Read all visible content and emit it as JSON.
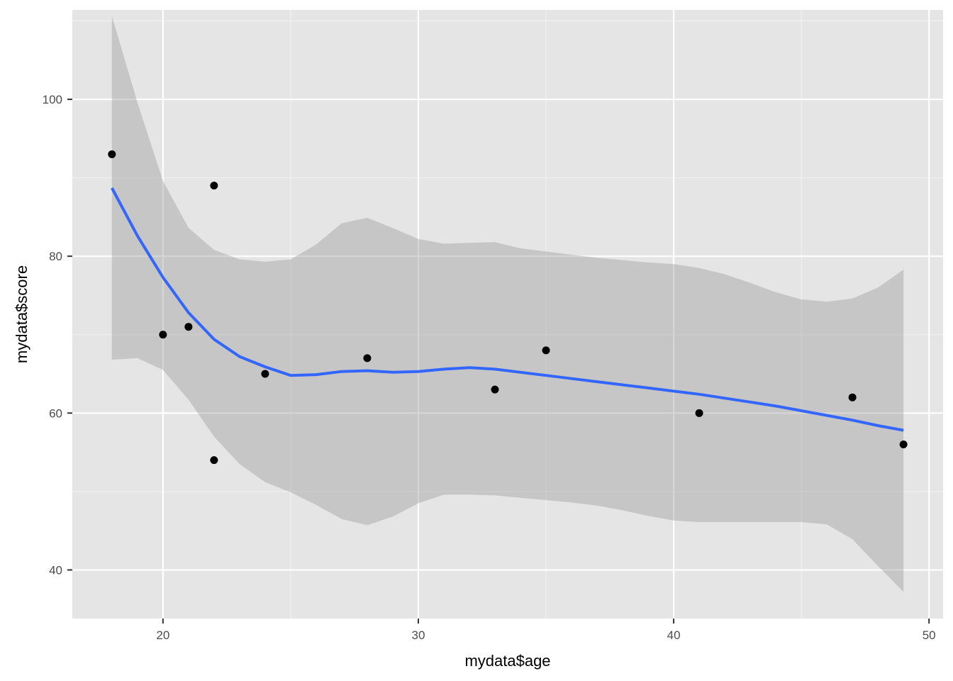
{
  "chart_data": {
    "type": "scatter",
    "title": "",
    "xlabel": "mydata$age",
    "ylabel": "mydata$score",
    "xlim": [
      16.45,
      50.55
    ],
    "ylim": [
      33.8,
      111.4
    ],
    "x_ticks": [
      20,
      30,
      40,
      50
    ],
    "x_tick_labels": [
      "20",
      "30",
      "40",
      "50"
    ],
    "y_ticks": [
      40,
      60,
      80,
      100
    ],
    "y_tick_labels": [
      "40",
      "60",
      "80",
      "100"
    ],
    "grid": true,
    "legend": "none",
    "points": {
      "x": [
        18,
        20,
        21,
        22,
        22,
        24,
        28,
        33,
        35,
        41,
        47,
        49
      ],
      "y": [
        93,
        70,
        71,
        89,
        54,
        65,
        67,
        63,
        68,
        60,
        62,
        56
      ]
    },
    "smooth": {
      "method": "loess",
      "x": [
        18,
        19,
        20,
        21,
        22,
        23,
        24,
        25,
        26,
        27,
        28,
        29,
        30,
        31,
        32,
        33,
        34,
        35,
        36,
        37,
        38,
        39,
        40,
        41,
        42,
        43,
        44,
        45,
        46,
        47,
        48,
        49
      ],
      "y": [
        88.7,
        82.6,
        77.3,
        72.8,
        69.4,
        67.2,
        65.9,
        64.8,
        64.9,
        65.3,
        65.4,
        65.2,
        65.3,
        65.6,
        65.8,
        65.6,
        65.2,
        64.8,
        64.4,
        64.0,
        63.6,
        63.2,
        62.8,
        62.4,
        61.9,
        61.4,
        60.9,
        60.3,
        59.7,
        59.1,
        58.4,
        57.8
      ],
      "ci_upper": [
        110.6,
        99.6,
        89.6,
        83.6,
        80.8,
        79.6,
        79.3,
        79.6,
        81.5,
        84.2,
        84.9,
        83.6,
        82.2,
        81.6,
        81.7,
        81.8,
        81.0,
        80.6,
        80.2,
        79.8,
        79.5,
        79.2,
        79.0,
        78.5,
        77.7,
        76.6,
        75.4,
        74.5,
        74.2,
        74.6,
        76.0,
        78.3
      ],
      "ci_lower": [
        66.8,
        67.0,
        65.5,
        61.7,
        57.0,
        53.5,
        51.2,
        49.9,
        48.3,
        46.5,
        45.7,
        46.8,
        48.5,
        49.6,
        49.6,
        49.5,
        49.2,
        48.9,
        48.6,
        48.2,
        47.6,
        46.9,
        46.3,
        46.1,
        46.1,
        46.1,
        46.1,
        46.1,
        45.8,
        43.9,
        40.5,
        37.2
      ]
    },
    "colors": {
      "panel_background": "#e5e5e5",
      "grid_major": "#ffffff",
      "grid_minor": "#f2f2f2",
      "point": "#000000",
      "line": "#3366ff",
      "ribbon": "#999999"
    }
  }
}
